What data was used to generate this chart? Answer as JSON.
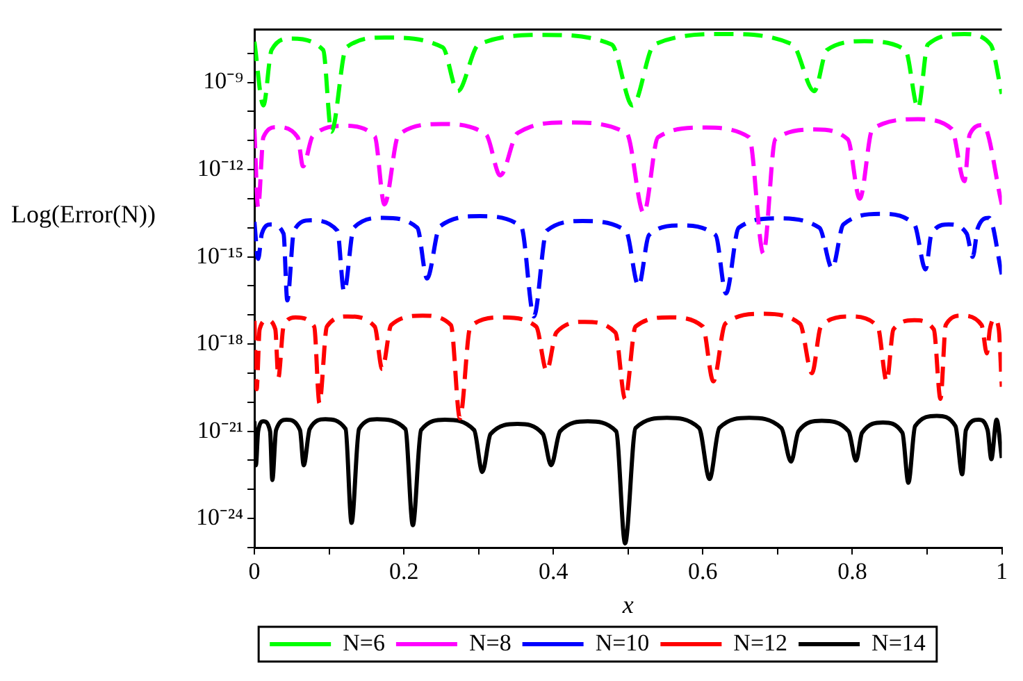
{
  "chart_data": {
    "type": "line",
    "xlabel": "x",
    "ylabel": "Log(Error(N))",
    "log": "y",
    "legend": "bottom",
    "grid": false,
    "marker": "none",
    "xlim": [
      0,
      1
    ],
    "xticks": [
      0,
      {
        "value": 0.1,
        "label": null
      },
      0.2,
      {
        "value": 0.3,
        "label": null
      },
      0.4,
      {
        "value": 0.5,
        "label": null
      },
      0.6,
      {
        "value": 0.7,
        "label": null
      },
      0.8,
      {
        "value": 0.9,
        "label": null
      },
      1
    ],
    "ylim": [
      1e-25,
      6.6e-08
    ],
    "yticks": [
      {
        "value": 1e-08,
        "label": null
      },
      {
        "value": 1e-09,
        "label": "10⁻⁹"
      },
      {
        "value": 1e-10,
        "label": null
      },
      {
        "value": 1e-11,
        "label": null
      },
      {
        "value": 1e-12,
        "label": "10⁻¹²"
      },
      {
        "value": 1e-13,
        "label": null
      },
      {
        "value": 1e-14,
        "label": null
      },
      {
        "value": 1e-15,
        "label": "10⁻¹⁵"
      },
      {
        "value": 1e-16,
        "label": null
      },
      {
        "value": 1e-17,
        "label": null
      },
      {
        "value": 1e-18,
        "label": "10⁻¹⁸"
      },
      {
        "value": 1e-19,
        "label": null
      },
      {
        "value": 1e-20,
        "label": null
      },
      {
        "value": 1e-21,
        "label": "10⁻²¹"
      },
      {
        "value": 1e-22,
        "label": null
      },
      {
        "value": 1e-23,
        "label": null
      },
      {
        "value": 1e-24,
        "label": "10⁻²⁴"
      },
      {
        "value": 1e-25,
        "label": null
      }
    ],
    "series": [
      {
        "name": "N=6",
        "color": "#00ff00",
        "line_style": "dashed",
        "x": [
          0,
          0.012,
          0.023,
          0.048,
          0.092,
          0.103,
          0.123,
          0.175,
          0.252,
          0.272,
          0.3,
          0.389,
          0.478,
          0.506,
          0.535,
          0.629,
          0.72,
          0.749,
          0.766,
          0.816,
          0.871,
          0.888,
          0.901,
          0.95,
          0.985,
          1
        ],
        "values": [
          2.5e-08,
          1.6e-10,
          1.3e-08,
          3.2e-08,
          1.3e-08,
          2e-11,
          1.6e-08,
          3.5e-08,
          1.6e-08,
          5e-10,
          2e-08,
          4.3e-08,
          2e-08,
          1.6e-10,
          2e-08,
          4.6e-08,
          2e-08,
          5e-10,
          1.3e-08,
          2.6e-08,
          1.3e-08,
          1.3e-10,
          2e-08,
          4.6e-08,
          2e-08,
          4e-10
        ]
      },
      {
        "name": "N=8",
        "color": "#ff00ff",
        "line_style": "dashed",
        "x": [
          0,
          0.005,
          0.012,
          0.03,
          0.058,
          0.065,
          0.078,
          0.12,
          0.161,
          0.174,
          0.193,
          0.25,
          0.31,
          0.329,
          0.352,
          0.42,
          0.498,
          0.521,
          0.54,
          0.6,
          0.662,
          0.681,
          0.697,
          0.75,
          0.794,
          0.81,
          0.827,
          0.888,
          0.933,
          0.95,
          0.957,
          0.975,
          1
        ],
        "values": [
          2.5e-11,
          5e-14,
          1.3e-11,
          2.9e-11,
          1.3e-11,
          1.3e-12,
          1.4e-11,
          3.2e-11,
          1.4e-11,
          6.3e-14,
          1.6e-11,
          3.7e-11,
          1.6e-11,
          6.3e-13,
          1.8e-11,
          4.2e-11,
          1.8e-11,
          3.2e-14,
          1.3e-11,
          2.8e-11,
          1.3e-11,
          1.3e-15,
          1.1e-11,
          2.4e-11,
          1.1e-11,
          1e-13,
          2.5e-11,
          5.4e-11,
          2.5e-11,
          4e-13,
          1.6e-11,
          3.4e-11,
          6.3e-14
        ]
      },
      {
        "name": "N=10",
        "color": "#0000ff",
        "line_style": "dashed",
        "x": [
          0,
          0.005,
          0.01,
          0.022,
          0.039,
          0.044,
          0.053,
          0.075,
          0.111,
          0.12,
          0.133,
          0.172,
          0.218,
          0.231,
          0.248,
          0.302,
          0.357,
          0.374,
          0.391,
          0.439,
          0.497,
          0.514,
          0.528,
          0.569,
          0.617,
          0.631,
          0.648,
          0.699,
          0.756,
          0.773,
          0.788,
          0.839,
          0.883,
          0.898,
          0.906,
          0.929,
          0.953,
          0.961,
          0.968,
          0.983,
          1
        ],
        "values": [
          1.6e-14,
          8.5e-16,
          6.3e-15,
          1.3e-14,
          6.3e-15,
          3.2e-17,
          7.9e-15,
          1.8e-14,
          7.9e-15,
          6.3e-17,
          1e-14,
          2.2e-14,
          1e-14,
          1.8e-16,
          1.1e-14,
          2.5e-14,
          1.1e-14,
          8.9e-18,
          7.9e-15,
          1.7e-14,
          7.9e-15,
          1e-16,
          5.6e-15,
          1.2e-14,
          5.6e-15,
          5.5e-17,
          1e-14,
          2.1e-14,
          1e-14,
          4e-16,
          1.3e-14,
          3e-14,
          1.3e-14,
          3.7e-16,
          6.3e-15,
          1.3e-14,
          6.3e-15,
          1e-15,
          1e-14,
          2.2e-14,
          2.5e-16
        ]
      },
      {
        "name": "N=12",
        "color": "#ff0000",
        "line_style": "dashed",
        "x": [
          0,
          0.003,
          0.007,
          0.017,
          0.028,
          0.032,
          0.039,
          0.055,
          0.08,
          0.087,
          0.097,
          0.125,
          0.161,
          0.171,
          0.183,
          0.225,
          0.263,
          0.275,
          0.289,
          0.332,
          0.377,
          0.391,
          0.404,
          0.442,
          0.483,
          0.496,
          0.51,
          0.556,
          0.6,
          0.614,
          0.63,
          0.679,
          0.73,
          0.746,
          0.758,
          0.796,
          0.834,
          0.846,
          0.855,
          0.883,
          0.909,
          0.918,
          0.925,
          0.946,
          0.973,
          0.98,
          0.984,
          0.99,
          0.996,
          1
        ],
        "values": [
          6.3e-18,
          2.8e-20,
          3.2e-18,
          6.6e-18,
          3.2e-18,
          6.9e-20,
          4e-18,
          8.3e-18,
          4e-18,
          9.3e-21,
          4e-18,
          8.9e-18,
          4e-18,
          1.4e-19,
          4.5e-18,
          9.5e-18,
          4.5e-18,
          2.8e-21,
          4e-18,
          8.3e-18,
          4e-18,
          1.2e-19,
          2.5e-18,
          5.8e-18,
          2.5e-18,
          1.3e-20,
          4e-18,
          8.3e-18,
          4e-18,
          5.2e-20,
          5e-18,
          1.1e-17,
          5e-18,
          1e-19,
          4e-18,
          8.9e-18,
          4e-18,
          5.2e-20,
          3.2e-18,
          6.6e-18,
          3.2e-18,
          1.3e-20,
          4.5e-18,
          9.5e-18,
          4.5e-18,
          4.8e-19,
          3.2e-18,
          7.4e-18,
          3.2e-18,
          3.4e-20
        ]
      },
      {
        "name": "N=14",
        "color": "#000000",
        "line_style": "solid",
        "x": [
          0,
          0.002,
          0.005,
          0.012,
          0.021,
          0.024,
          0.029,
          0.043,
          0.061,
          0.066,
          0.074,
          0.095,
          0.122,
          0.13,
          0.14,
          0.164,
          0.202,
          0.212,
          0.223,
          0.255,
          0.294,
          0.305,
          0.316,
          0.352,
          0.386,
          0.397,
          0.409,
          0.446,
          0.484,
          0.496,
          0.51,
          0.552,
          0.595,
          0.609,
          0.622,
          0.662,
          0.705,
          0.718,
          0.728,
          0.759,
          0.795,
          0.805,
          0.813,
          0.841,
          0.867,
          0.875,
          0.884,
          0.913,
          0.938,
          0.947,
          0.952,
          0.969,
          0.981,
          0.986,
          0.993,
          1
        ],
        "values": [
          2.2e-21,
          6.8e-23,
          1e-21,
          2.2e-21,
          1e-21,
          2.1e-23,
          1.1e-21,
          2.5e-21,
          1.1e-21,
          6.8e-23,
          1.2e-21,
          2.6e-21,
          1.2e-21,
          7.1e-25,
          1.2e-21,
          2.6e-21,
          1.2e-21,
          5.9e-25,
          1.1e-21,
          2.5e-21,
          1.1e-21,
          4e-23,
          8.1e-22,
          1.8e-21,
          8.1e-22,
          6.8e-23,
          1e-21,
          2.2e-21,
          1e-21,
          1.4e-25,
          1.3e-21,
          2.9e-21,
          1.3e-21,
          2.3e-23,
          1.3e-21,
          2.9e-21,
          1.3e-21,
          9.1e-23,
          1e-21,
          2.3e-21,
          1e-21,
          9.8e-23,
          8.9e-22,
          2e-21,
          8.9e-22,
          1.7e-23,
          1.5e-21,
          3.4e-21,
          1.5e-21,
          3.3e-23,
          1.1e-21,
          2.5e-21,
          1.1e-21,
          1.1e-22,
          2.5e-21,
          1.2e-22
        ]
      }
    ]
  }
}
